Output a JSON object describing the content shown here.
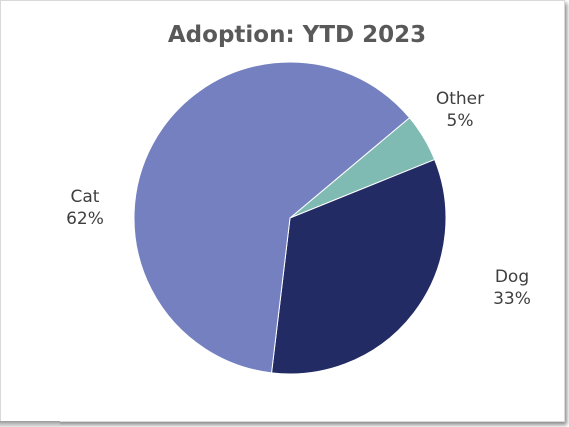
{
  "chart_data": {
    "type": "pie",
    "title": "Adoption: YTD 2023",
    "slices": [
      {
        "label": "Other",
        "value": 5,
        "percent_label": "5%",
        "color": "#7fbab3"
      },
      {
        "label": "Dog",
        "value": 33,
        "percent_label": "33%",
        "color": "#222b63"
      },
      {
        "label": "Cat",
        "value": 62,
        "percent_label": "62%",
        "color": "#7480bf"
      }
    ],
    "legend": "none",
    "data_labels": "outside"
  }
}
